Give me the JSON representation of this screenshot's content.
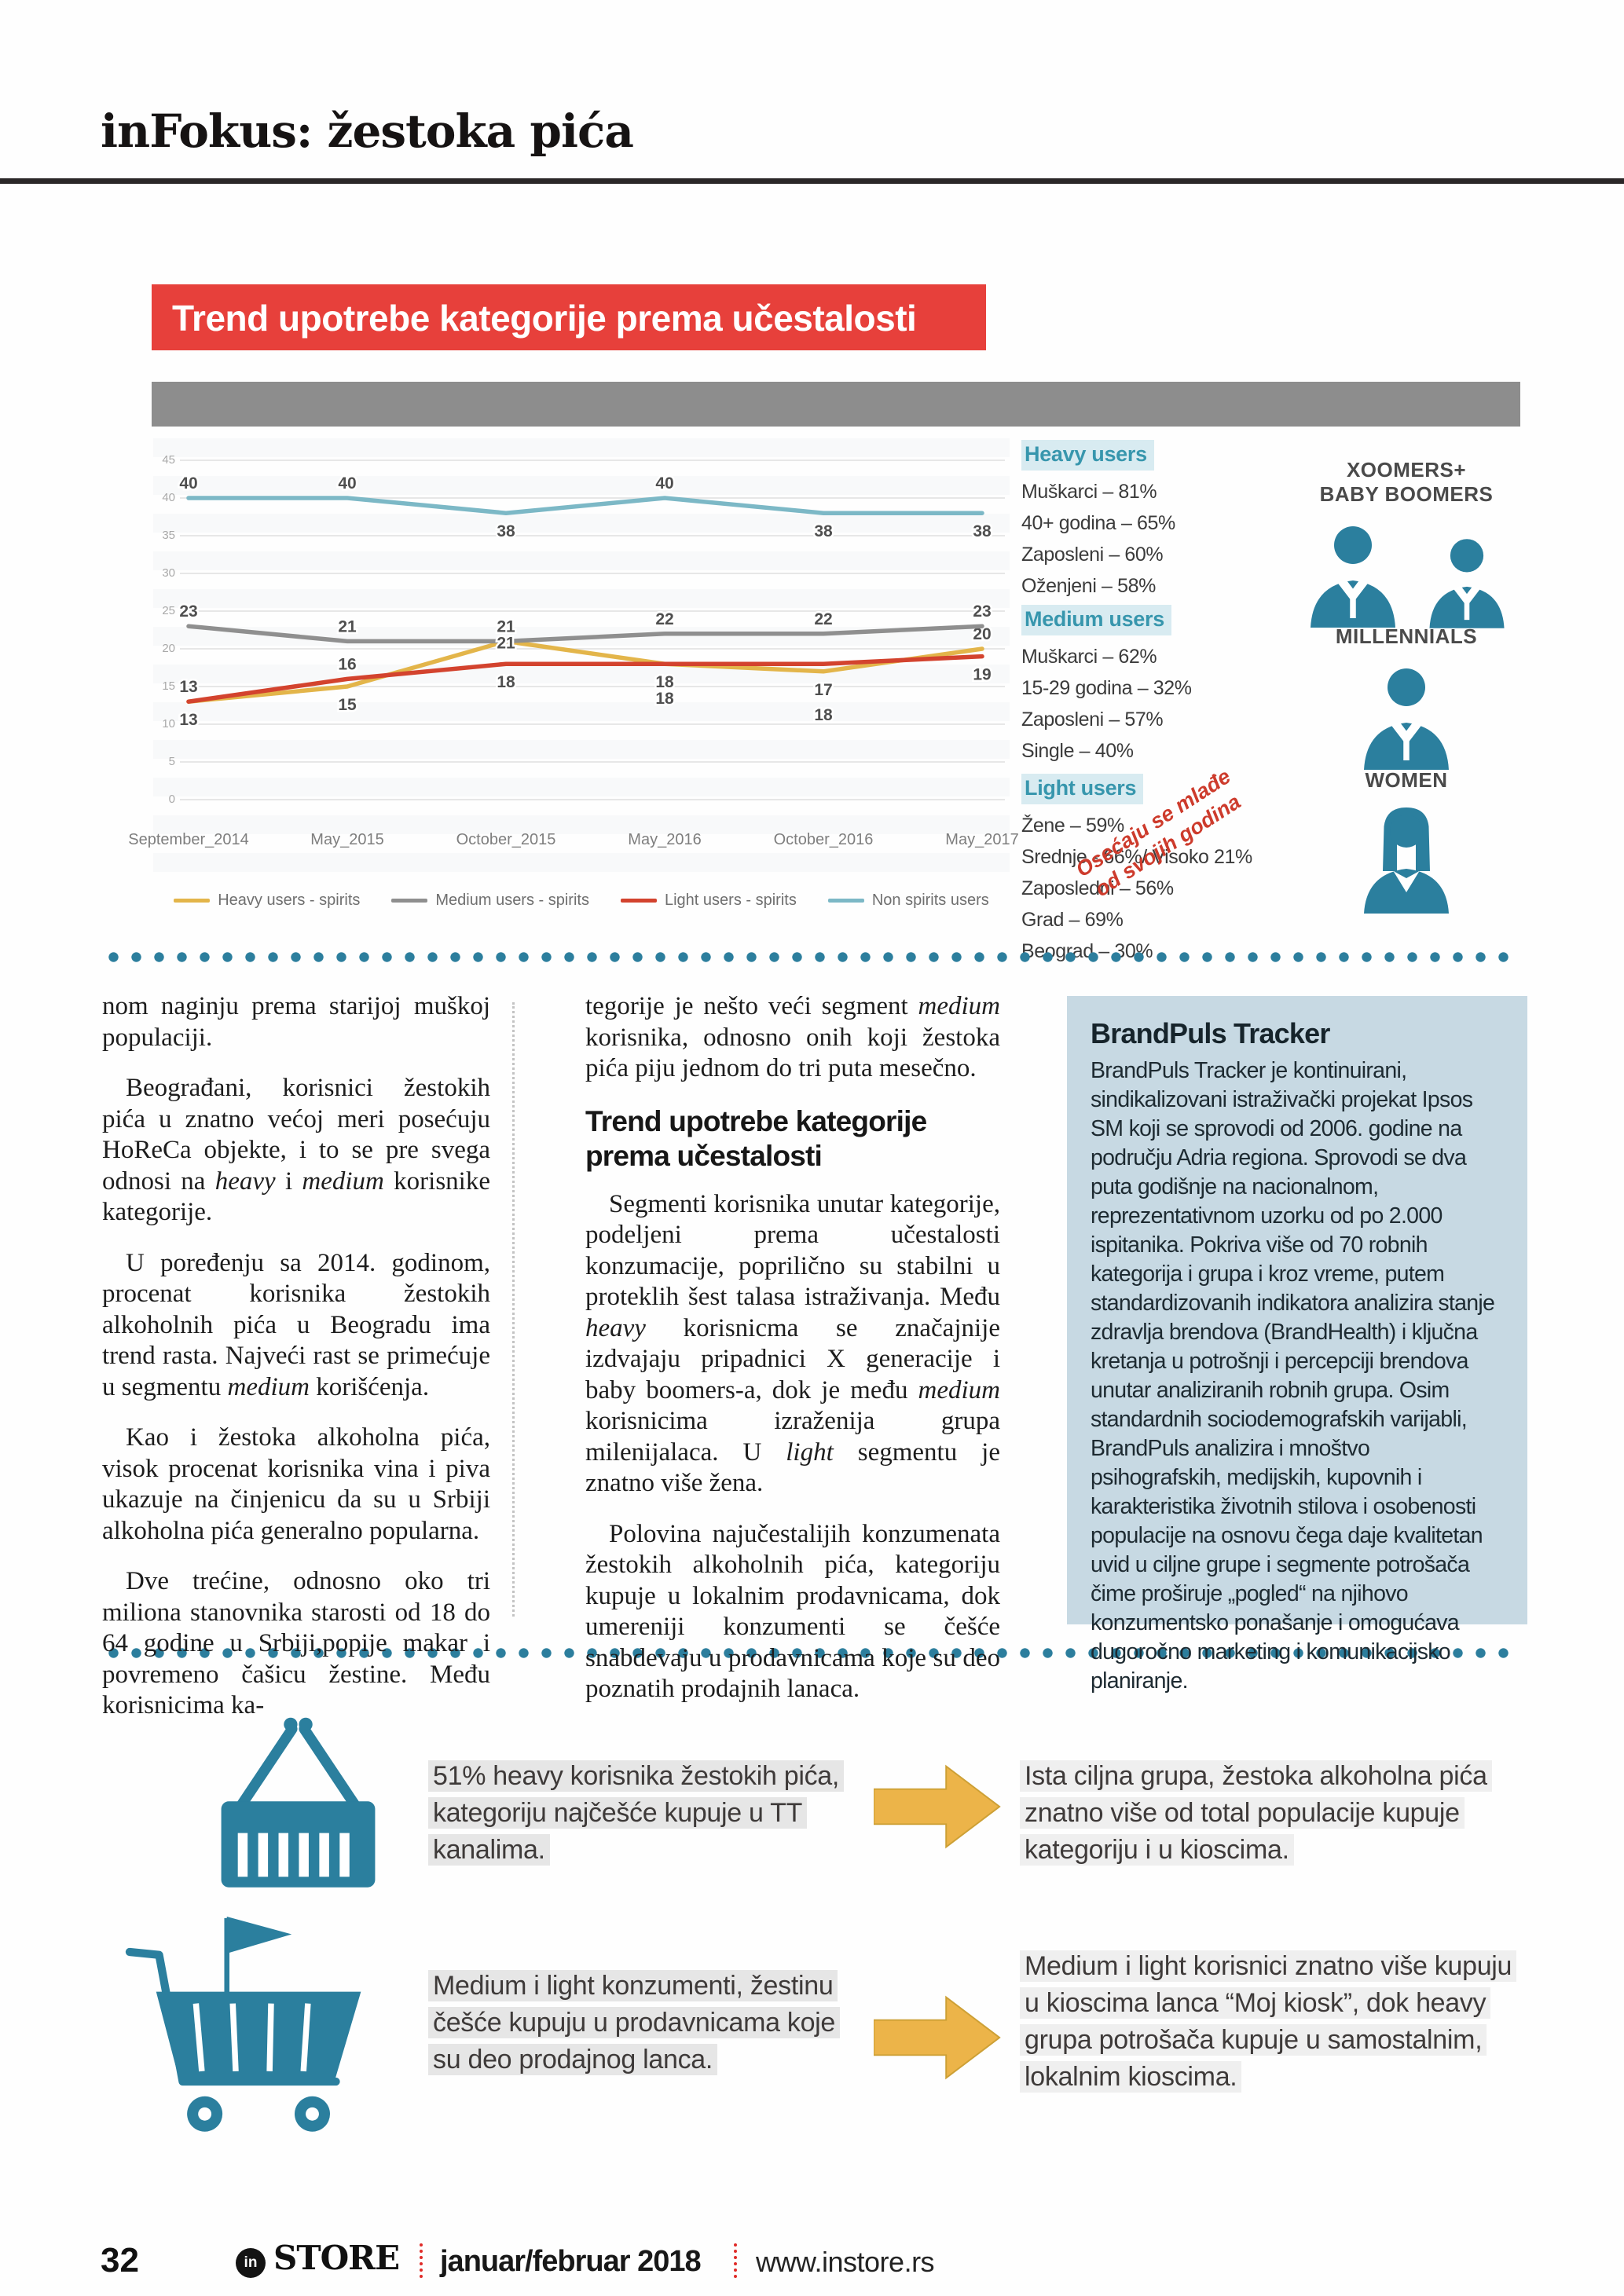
{
  "header": {
    "title": "inFokus: žestoka pića"
  },
  "chart_data": {
    "type": "line",
    "title": "Trend upotrebe kategorije prema učestalosti",
    "categories": [
      "September_2014",
      "May_2015",
      "October_2015",
      "May_2016",
      "October_2016",
      "May_2017"
    ],
    "series": [
      {
        "name": "Heavy users - spirits",
        "color": "#e3b54a",
        "values": [
          13,
          15,
          21,
          18,
          17,
          20
        ]
      },
      {
        "name": "Medium users - spirits",
        "color": "#8f8f8f",
        "values": [
          23,
          21,
          21,
          22,
          22,
          23
        ]
      },
      {
        "name": "Light users - spirits",
        "color": "#d3432e",
        "values": [
          13,
          16,
          18,
          18,
          18,
          19
        ]
      },
      {
        "name": "Non spirits users",
        "color": "#7cb8c6",
        "values": [
          40,
          40,
          38,
          40,
          38,
          38
        ]
      }
    ],
    "ylim": [
      0,
      45
    ],
    "y_ticks": [
      45,
      40,
      35,
      30,
      25,
      20,
      15,
      10,
      5,
      0
    ],
    "grid": true,
    "legend_position": "bottom"
  },
  "chart_panel": {
    "segments": [
      {
        "title": "Heavy users",
        "lines": [
          "Muškarci – 81%",
          "40+ godina – 65%",
          "Zaposleni – 60%",
          "Oženjeni – 58%"
        ]
      },
      {
        "title": "Medium users",
        "lines": [
          "Muškarci – 62%",
          "15-29 godina – 32%",
          "Zaposleni – 57%",
          "Single – 40%"
        ]
      },
      {
        "title": "Light users",
        "lines": [
          "Žene – 59%",
          "Srednje - 66%/ Visoko 21%",
          "Zaposledni – 56%",
          "Grad – 69%",
          "Beograd – 30%"
        ]
      }
    ],
    "generations": [
      {
        "label": "XOOMERS+\nBABY BOOMERS",
        "icon": "two-men"
      },
      {
        "label": "MILLENNIALS",
        "icon": "man"
      },
      {
        "label": "WOMEN",
        "icon": "woman"
      }
    ],
    "annotation": "Osećaju se mlađe od svojih godina"
  },
  "article": {
    "col1": [
      "nom naginju prema starijoj muškoj populaciji.",
      "Beograđani, korisnici žestokih pića u znatno većoj meri posećuju HoReCa objekte, i to se pre svega odnosi na *heavy* i *medium* korisnike kategorije.",
      "U poređenju sa 2014. godinom, procenat korisnika žestokih alkoholnih pića u Beogradu ima trend rasta. Najveći rast se primećuje u segmentu *medium* korišćenja.",
      "Kao i žestoka alkoholna pića, visok procenat korisnika vina i piva ukazuje na činjenicu da su u Srbiji alkoholna pića generalno popularna.",
      "Dve trećine, odnosno oko tri miliona stanovnika starosti od 18 do 64 godine u Srbiji,popije makar i povremeno čašicu žestine. Među korisnicima ka-"
    ],
    "col2_intro": [
      "tegorije je nešto veći segment *medium* korisnika, odnosno onih koji žestoka pića piju jednom do tri puta mesečno."
    ],
    "col2_heading": "Trend upotrebe kategorije prema učestalosti",
    "col2_rest": [
      "Segmenti korisnika unutar kategorije, podeljeni prema učestalosti konzumacije, poprilično su stabilni u proteklih šest talasa istraživanja. Među *heavy* korisnicma se značajnije izdvajaju pripadnici X generacije i baby boomers-a, dok je među *medium* korisnicima izraženija grupa milenijalaca. U *light* segmentu je znatno više žena.",
      "Polovina najučestalijih konzumenata žestokih alkoholnih pića, kategoriju kupuje u lokalnim prodavnicama, dok umereniji konzumenti se češće snabdevaju u prodavnicama koje su deo poznatih prodajnih lanaca."
    ],
    "box": {
      "title": "BrandPuls Tracker",
      "body": "BrandPuls Tracker je kontinuirani, sindikalizovani istraživački projekat Ipsos SM koji se sprovodi od 2006. godine na području Adria regiona. Sprovodi se dva puta godišnje na nacionalnom, reprezentativnom uzorku od po 2.000 ispitanika. Pokriva više od 70 robnih kategorija i grupa i kroz vreme, putem standardizovanih indikatora analizira stanje zdravlja brendova (BrandHealth) i ključna kretanja u potrošnji i percepciji brendova unutar analiziranih robnih grupa. Osim standardnih sociodemografskih varijabli, BrandPuls analizira i mnoštvo psihografskih, medijskih, kupovnih i karakteristika životnih stilova i osobenosti populacije na osnovu čega daje kvalitetan uvid u ciljne grupe i segmente potrošača čime proširuje „pogled“ na njihovo konzumentsko ponašanje i omogućava dugoročno marketing i komunikacijsko planiranje."
    }
  },
  "bottom": {
    "rows": [
      {
        "icon": "basket",
        "left_text": "51% heavy korisnika žestokih pića, kategoriju najčešće kupuje u TT kanalima.",
        "right_text": "Ista ciljna grupa, žestoka alkoholna pića znatno više od total populacije kupuje kategoriju i u kioscima."
      },
      {
        "icon": "cart",
        "left_text": "Medium i light konzumenti, žestinu češće kupuju u prodavnicama koje su deo prodajnog lanca.",
        "right_text": "Medium i light korisnici znatno više kupuju u kioscima lanca “Moj kiosk”, dok heavy grupa potrošača kupuje u samostalnim, lokalnim kioscima."
      }
    ]
  },
  "footer": {
    "page_number": "32",
    "logo_mark": "in",
    "brand": "STORE",
    "issue": "januar/februar 2018",
    "website": "www.instore.rs"
  }
}
